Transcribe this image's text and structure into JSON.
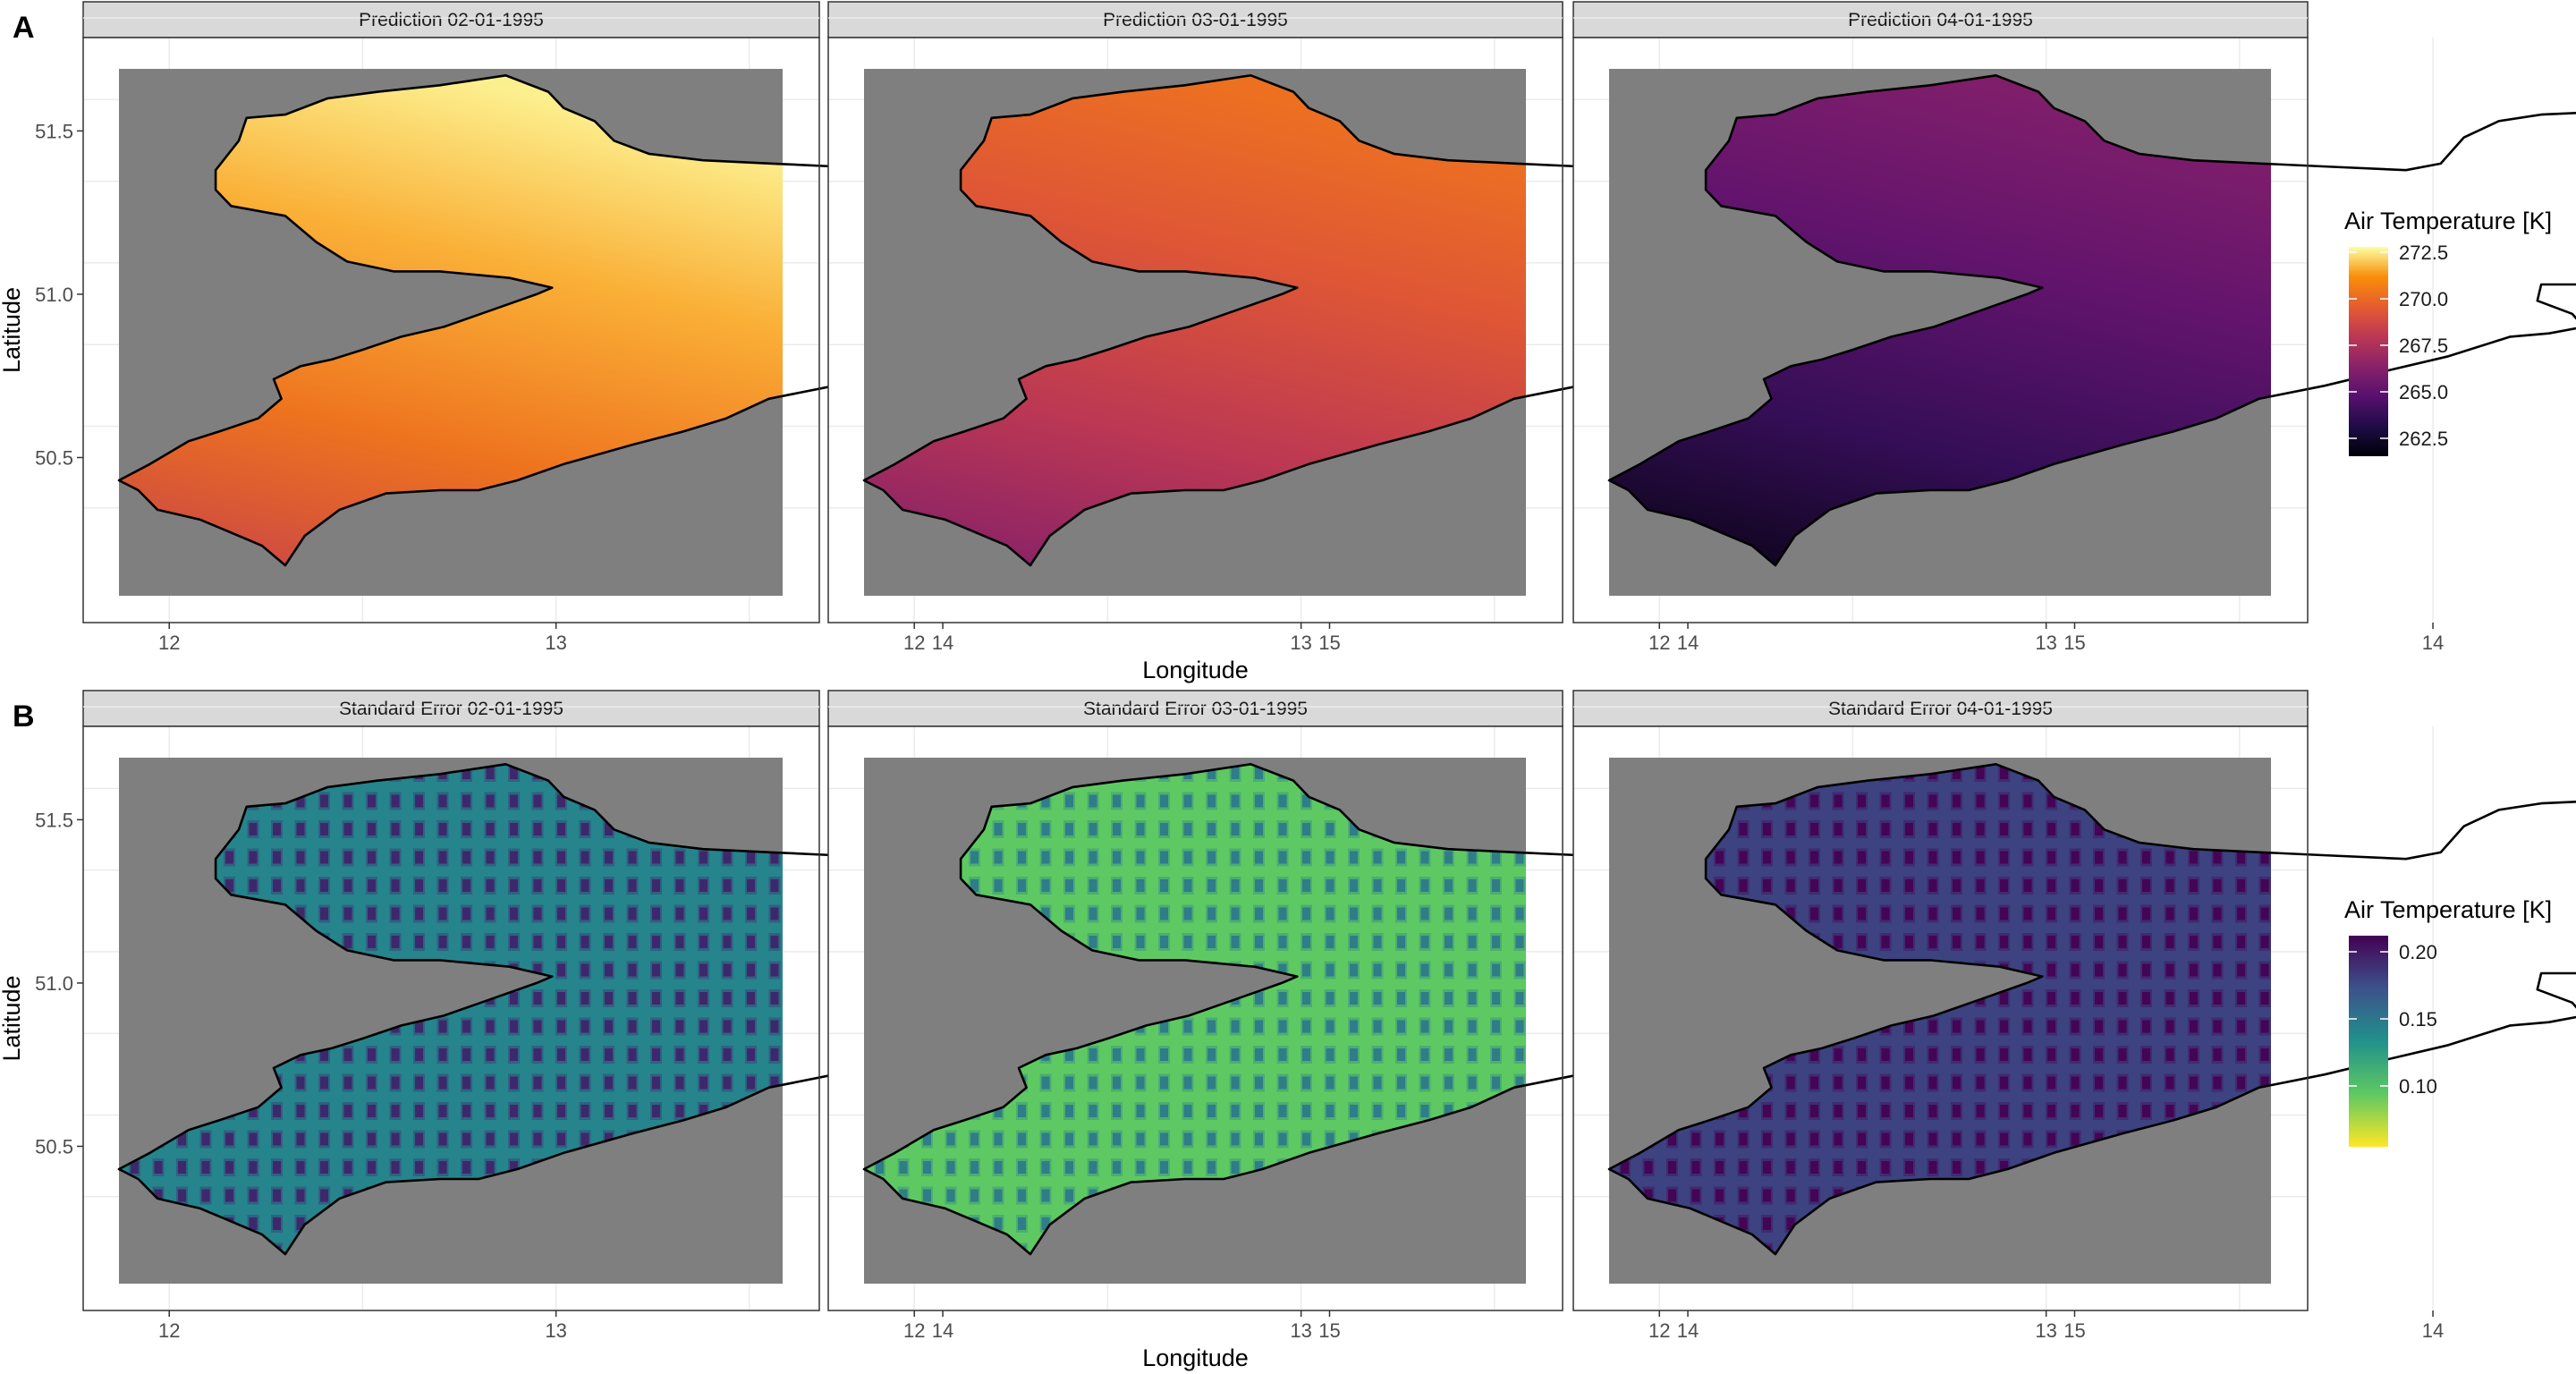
{
  "panel_labels": [
    "A",
    "B"
  ],
  "x_axis_title": "Longitude",
  "y_axis_title": "Latitude",
  "x_ticks": [
    "12",
    "13",
    "14",
    "15"
  ],
  "y_ticks": [
    "50.5",
    "51.0",
    "51.5"
  ],
  "rows": [
    {
      "label": "A",
      "facets": [
        "Prediction 02-01-1995",
        "Prediction 03-01-1995",
        "Prediction 04-01-1995"
      ],
      "legend": {
        "title": "Air Temperature [K]",
        "palette": "inferno",
        "ticks": [
          "272.5",
          "270.0",
          "267.5",
          "265.0",
          "262.5"
        ],
        "colors": [
          "#fcffa4",
          "#f98e09",
          "#e55c30",
          "#bc3754",
          "#89226a",
          "#57106e",
          "#1f0c48",
          "#000004"
        ]
      },
      "fill_levels": [
        0.93,
        0.72,
        0.35
      ]
    },
    {
      "label": "B",
      "facets": [
        "Standard Error 02-01-1995",
        "Standard Error 03-01-1995",
        "Standard Error 04-01-1995"
      ],
      "legend": {
        "title": "Air Temperature [K]",
        "palette": "viridis-reversed",
        "ticks": [
          "0.20",
          "0.15",
          "0.10"
        ],
        "colors": [
          "#440154",
          "#3b528b",
          "#21918c",
          "#5ec962",
          "#fde725"
        ]
      },
      "fill_levels": [
        0.45,
        0.75,
        0.2
      ]
    }
  ],
  "colors": {
    "panel_background": "#7f7f7f",
    "strip_background": "#d9d9d9",
    "grid": "#ebebeb",
    "border": "#333333",
    "outline": "#000000"
  }
}
